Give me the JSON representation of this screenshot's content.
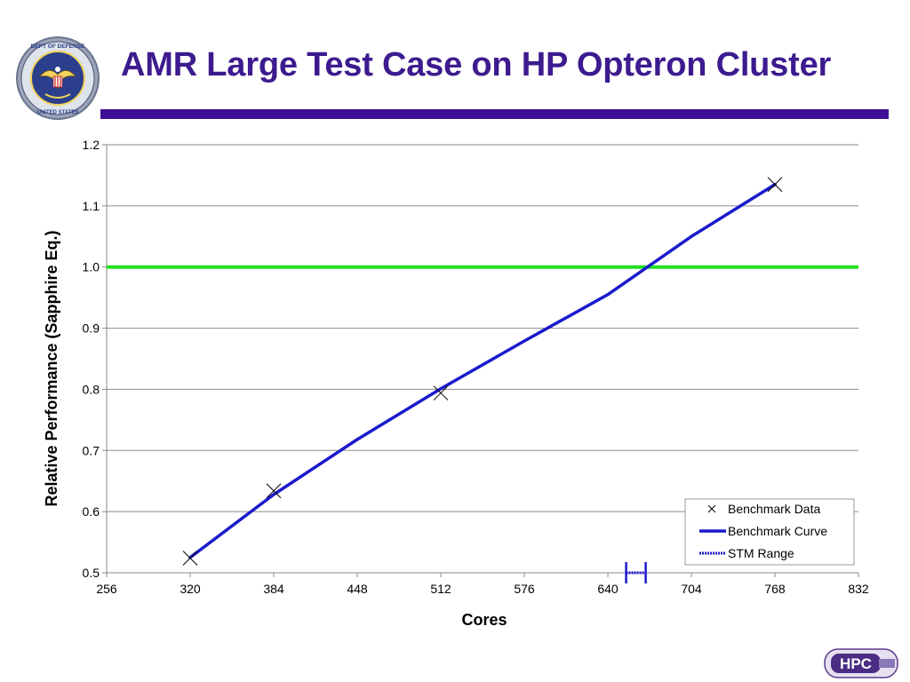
{
  "slide": {
    "title": "AMR Large Test Case on HP Opteron Cluster",
    "title_color": "#3d1b8f",
    "bar_color": "#3d1096",
    "seal_icon": "department-of-defense-seal",
    "seal_text": "DEPARTMENT OF DEFENSE · UNITED STATES OF AMERICA",
    "logo_icon": "hpc-modernization-program-logo",
    "logo_text": "HPC"
  },
  "chart_data": {
    "type": "line",
    "title": "",
    "xlabel": "Cores",
    "ylabel": "Relative Performance (Sapphire Eq.)",
    "xlim": [
      256,
      832
    ],
    "ylim": [
      0.5,
      1.2
    ],
    "x_ticks": [
      256,
      320,
      384,
      448,
      512,
      576,
      640,
      704,
      768,
      832
    ],
    "y_ticks": [
      0.5,
      0.6,
      0.7,
      0.8,
      0.9,
      1.0,
      1.1,
      1.2
    ],
    "y_tick_labels": [
      "0.5",
      "0.6",
      "0.7",
      "0.8",
      "0.9",
      "1.0",
      "1.1",
      "1.2"
    ],
    "grid": "horizontal",
    "legend_position": "bottom-right",
    "reference_line": {
      "y": 1.0,
      "color": "#22e022"
    },
    "series": [
      {
        "name": "Benchmark Data",
        "kind": "scatter",
        "marker": "x",
        "color": "#000000",
        "x": [
          320,
          384,
          512,
          768
        ],
        "y": [
          0.524,
          0.634,
          0.794,
          1.135
        ]
      },
      {
        "name": "Benchmark Curve",
        "kind": "line",
        "color": "#1a1acc",
        "x": [
          320,
          384,
          448,
          512,
          576,
          640,
          704,
          768
        ],
        "y": [
          0.525,
          0.628,
          0.718,
          0.801,
          0.879,
          0.955,
          1.05,
          1.135
        ]
      },
      {
        "name": "STM Range",
        "kind": "range",
        "color": "#1a1acc",
        "x": [
          654,
          669
        ],
        "y": 0.5
      }
    ]
  }
}
